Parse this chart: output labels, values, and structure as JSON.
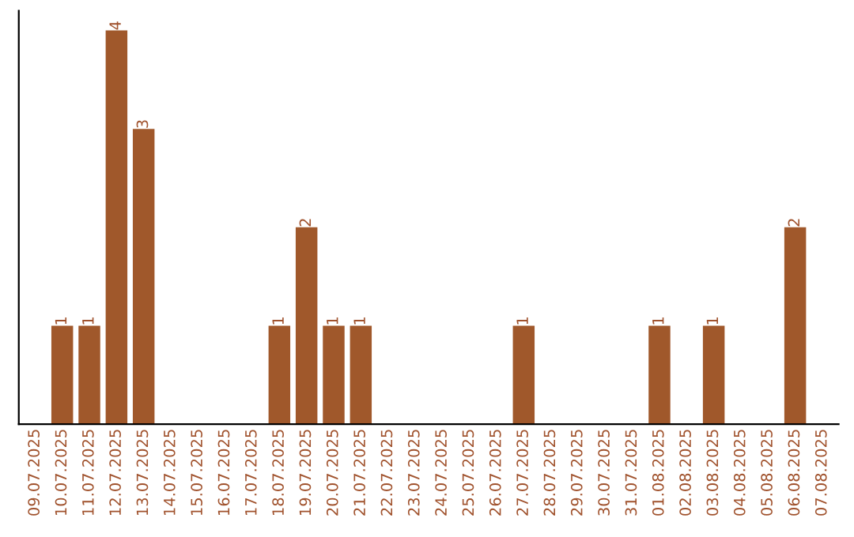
{
  "chart_data": {
    "type": "bar",
    "categories": [
      "09.07.2025",
      "10.07.2025",
      "11.07.2025",
      "12.07.2025",
      "13.07.2025",
      "14.07.2025",
      "15.07.2025",
      "16.07.2025",
      "17.07.2025",
      "18.07.2025",
      "19.07.2025",
      "20.07.2025",
      "21.07.2025",
      "22.07.2025",
      "23.07.2025",
      "24.07.2025",
      "25.07.2025",
      "26.07.2025",
      "27.07.2025",
      "28.07.2025",
      "29.07.2025",
      "30.07.2025",
      "31.07.2025",
      "01.08.2025",
      "02.08.2025",
      "03.08.2025",
      "04.08.2025",
      "05.08.2025",
      "06.08.2025",
      "07.08.2025"
    ],
    "values": [
      0,
      1,
      1,
      4,
      3,
      0,
      0,
      0,
      0,
      1,
      2,
      1,
      1,
      0,
      0,
      0,
      0,
      0,
      1,
      0,
      0,
      0,
      0,
      1,
      0,
      1,
      0,
      0,
      2,
      0
    ],
    "value_labels": [
      null,
      "1",
      "1",
      "4",
      "3",
      null,
      null,
      null,
      null,
      "1",
      "2",
      "1",
      "1",
      null,
      null,
      null,
      null,
      null,
      "1",
      null,
      null,
      null,
      null,
      "1",
      null,
      "1",
      null,
      null,
      "2",
      null
    ],
    "color": "#a0582b",
    "ylim": [
      0,
      4.2
    ],
    "tick_labels": "x",
    "grid": false,
    "legend": false
  }
}
